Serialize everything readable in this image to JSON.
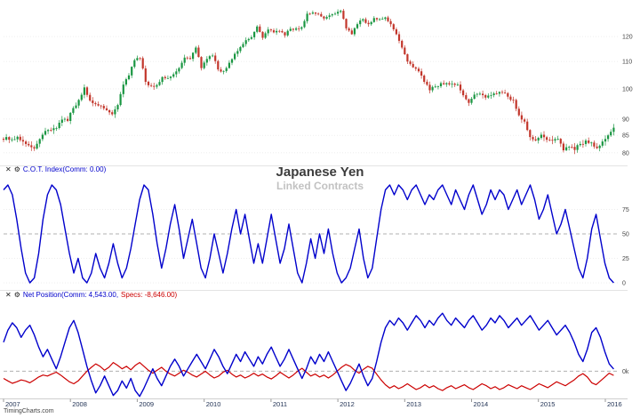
{
  "title": {
    "main": "Japanese Yen",
    "sub": "Linked Contracts"
  },
  "branding": {
    "watermark": "TimingCharts.com"
  },
  "icons": {
    "close": "✕",
    "gear": "⚙"
  },
  "x_axis": {
    "years": [
      "2007",
      "2008",
      "2009",
      "2010",
      "2011",
      "2012",
      "2013",
      "2014",
      "2015",
      "2016"
    ]
  },
  "chart_data": [
    {
      "type": "candlestick",
      "name": "Japanese Yen futures price",
      "scale": "log",
      "ylim": [
        77.5,
        133
      ],
      "yticks": [
        80,
        85,
        90,
        100,
        110,
        120
      ],
      "up_color": "#1a9642",
      "down_color": "#c2362b",
      "x_start_year": 2007,
      "x_step_months": 1,
      "closes": [
        84.5,
        83.8,
        84.6,
        83.2,
        82.1,
        81.2,
        83.9,
        86.3,
        86.6,
        87.2,
        89.8,
        89.4,
        93.5,
        96.2,
        100.5,
        96.0,
        94.8,
        94.2,
        92.8,
        91.5,
        94.5,
        101.5,
        104.8,
        110.5,
        111.3,
        102.5,
        101.0,
        101.3,
        104.2,
        103.8,
        105.2,
        107.5,
        111.5,
        111.0,
        115.5,
        107.5,
        111.0,
        112.3,
        107.0,
        106.4,
        109.5,
        113.0,
        115.7,
        118.5,
        119.7,
        124.3,
        119.5,
        123.0,
        121.8,
        122.3,
        120.5,
        123.3,
        123.5,
        124.0,
        130.0,
        130.5,
        129.8,
        127.8,
        129.2,
        130.0,
        131.3,
        123.5,
        121.0,
        125.3,
        127.5,
        125.3,
        128.0,
        127.5,
        128.3,
        125.3,
        121.0,
        115.5,
        110.0,
        107.8,
        106.3,
        102.5,
        99.5,
        100.8,
        102.0,
        102.0,
        101.8,
        101.5,
        97.8,
        95.2,
        98.0,
        98.3,
        97.0,
        97.8,
        98.3,
        98.7,
        97.3,
        96.2,
        91.2,
        89.2,
        84.5,
        83.5,
        85.2,
        83.7,
        83.5,
        84.0,
        80.7,
        81.7,
        80.8,
        82.5,
        83.5,
        82.9,
        81.3,
        83.2,
        85.0,
        87.3
      ]
    },
    {
      "type": "line",
      "name": "C.O.T. Index",
      "legend": "C.O.T. Index(Comm: 0.00)",
      "current_comm": 0.0,
      "color": "#0000cc",
      "ylim": [
        0,
        100
      ],
      "yticks": [
        0,
        25,
        50,
        75
      ],
      "ref_line": 50,
      "values": [
        95,
        100,
        90,
        65,
        35,
        10,
        0,
        5,
        30,
        65,
        90,
        100,
        95,
        80,
        55,
        30,
        10,
        25,
        5,
        0,
        10,
        30,
        15,
        5,
        20,
        40,
        20,
        5,
        15,
        35,
        60,
        85,
        100,
        95,
        70,
        40,
        15,
        35,
        60,
        80,
        55,
        25,
        45,
        65,
        40,
        15,
        5,
        25,
        50,
        30,
        10,
        30,
        55,
        75,
        50,
        70,
        45,
        20,
        40,
        20,
        45,
        70,
        45,
        20,
        35,
        60,
        35,
        10,
        0,
        20,
        45,
        25,
        50,
        30,
        55,
        30,
        10,
        0,
        5,
        15,
        35,
        55,
        25,
        5,
        15,
        45,
        75,
        95,
        100,
        90,
        100,
        95,
        85,
        95,
        100,
        90,
        80,
        90,
        85,
        95,
        100,
        90,
        80,
        95,
        85,
        75,
        90,
        100,
        85,
        70,
        80,
        95,
        85,
        95,
        90,
        75,
        85,
        95,
        80,
        90,
        100,
        85,
        65,
        75,
        90,
        70,
        50,
        60,
        75,
        55,
        35,
        15,
        5,
        25,
        55,
        70,
        45,
        20,
        5,
        0
      ]
    },
    {
      "type": "line",
      "name": "Net Position",
      "legend_comm": "Net Position(Comm: 4,543.00,",
      "legend_specs": "Specs: -8,646.00)",
      "ylim": [
        -60,
        135
      ],
      "ref_line": 0,
      "zero_label": "0k",
      "unit": "thousand contracts",
      "series": [
        {
          "name": "Commercials",
          "current": "4,543.00",
          "color": "#0000cc",
          "values": [
            60,
            85,
            100,
            90,
            70,
            85,
            95,
            75,
            50,
            30,
            45,
            25,
            5,
            30,
            60,
            90,
            105,
            80,
            45,
            10,
            -20,
            -45,
            -30,
            -10,
            -30,
            -50,
            -40,
            -20,
            -35,
            -15,
            -40,
            -52,
            -35,
            -15,
            5,
            -15,
            -30,
            -10,
            10,
            25,
            10,
            -10,
            5,
            20,
            35,
            20,
            5,
            25,
            45,
            30,
            10,
            -5,
            15,
            35,
            20,
            40,
            25,
            10,
            30,
            15,
            35,
            50,
            30,
            10,
            25,
            45,
            25,
            5,
            -15,
            5,
            30,
            15,
            35,
            20,
            40,
            20,
            0,
            -20,
            -40,
            -25,
            -5,
            15,
            -10,
            -30,
            -15,
            20,
            60,
            90,
            105,
            95,
            110,
            100,
            85,
            100,
            115,
            105,
            90,
            105,
            95,
            110,
            120,
            105,
            95,
            110,
            100,
            90,
            105,
            115,
            100,
            85,
            95,
            110,
            100,
            115,
            105,
            90,
            100,
            110,
            95,
            105,
            115,
            100,
            85,
            95,
            105,
            90,
            75,
            85,
            95,
            80,
            60,
            35,
            20,
            45,
            80,
            90,
            70,
            40,
            15,
            4.5
          ]
        },
        {
          "name": "Large Speculators",
          "current": "-8,646.00",
          "color": "#cc0000",
          "values": [
            -15,
            -20,
            -25,
            -22,
            -18,
            -20,
            -24,
            -18,
            -12,
            -8,
            -10,
            -6,
            -2,
            -8,
            -15,
            -22,
            -26,
            -20,
            -10,
            0,
            8,
            15,
            10,
            2,
            8,
            18,
            12,
            5,
            10,
            3,
            12,
            18,
            10,
            2,
            -4,
            2,
            8,
            0,
            -6,
            -10,
            -4,
            2,
            -2,
            -8,
            -12,
            -6,
            0,
            -8,
            -14,
            -10,
            -2,
            2,
            -6,
            -12,
            -8,
            -14,
            -10,
            -4,
            -10,
            -6,
            -12,
            -16,
            -10,
            -2,
            -8,
            -14,
            -8,
            0,
            6,
            -2,
            -10,
            -6,
            -12,
            -8,
            -14,
            -8,
            0,
            8,
            14,
            10,
            2,
            -4,
            4,
            10,
            6,
            -6,
            -18,
            -28,
            -35,
            -30,
            -36,
            -32,
            -26,
            -32,
            -38,
            -34,
            -28,
            -34,
            -30,
            -36,
            -40,
            -34,
            -30,
            -36,
            -32,
            -28,
            -34,
            -38,
            -32,
            -26,
            -30,
            -36,
            -32,
            -38,
            -34,
            -28,
            -32,
            -36,
            -30,
            -34,
            -38,
            -32,
            -26,
            -30,
            -34,
            -28,
            -22,
            -26,
            -30,
            -24,
            -18,
            -10,
            -5,
            -12,
            -24,
            -28,
            -20,
            -12,
            -4,
            -8.6
          ]
        }
      ]
    }
  ]
}
